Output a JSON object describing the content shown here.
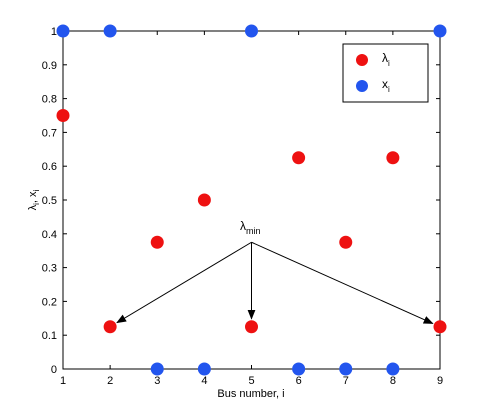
{
  "chart_data": {
    "type": "scatter",
    "x_label": "Bus number, i",
    "y_label_main": "λ",
    "y_label_sub1": "i",
    "y_label_sep": ", x",
    "y_label_sub2": "i",
    "xlim": [
      1,
      9
    ],
    "ylim": [
      0,
      1
    ],
    "x_ticks": [
      1,
      2,
      3,
      4,
      5,
      6,
      7,
      8,
      9
    ],
    "y_ticks": [
      0,
      0.1,
      0.2,
      0.3,
      0.4,
      0.5,
      0.6,
      0.7,
      0.8,
      0.9,
      1
    ],
    "grid": false,
    "legend_position": "top-right",
    "series": [
      {
        "name_main": "λ",
        "name_sub": "i",
        "color": "#ee1111",
        "points": [
          {
            "x": 1,
            "y": 0.75
          },
          {
            "x": 2,
            "y": 0.125
          },
          {
            "x": 3,
            "y": 0.375
          },
          {
            "x": 4,
            "y": 0.5
          },
          {
            "x": 5,
            "y": 0.125
          },
          {
            "x": 6,
            "y": 0.625
          },
          {
            "x": 7,
            "y": 0.375
          },
          {
            "x": 8,
            "y": 0.625
          },
          {
            "x": 9,
            "y": 0.125
          }
        ]
      },
      {
        "name_main": "x",
        "name_sub": "i",
        "color": "#2255ee",
        "points": [
          {
            "x": 1,
            "y": 1
          },
          {
            "x": 2,
            "y": 1
          },
          {
            "x": 3,
            "y": 0
          },
          {
            "x": 4,
            "y": 0
          },
          {
            "x": 5,
            "y": 1
          },
          {
            "x": 6,
            "y": 0
          },
          {
            "x": 7,
            "y": 0
          },
          {
            "x": 8,
            "y": 0
          },
          {
            "x": 9,
            "y": 1
          }
        ]
      }
    ],
    "annotation": {
      "text_main": "λ",
      "text_sub": "min",
      "origin": {
        "x": 5,
        "y": 0.375
      },
      "targets": [
        {
          "x": 2,
          "y": 0.125
        },
        {
          "x": 5,
          "y": 0.125
        },
        {
          "x": 9,
          "y": 0.125
        }
      ]
    }
  }
}
